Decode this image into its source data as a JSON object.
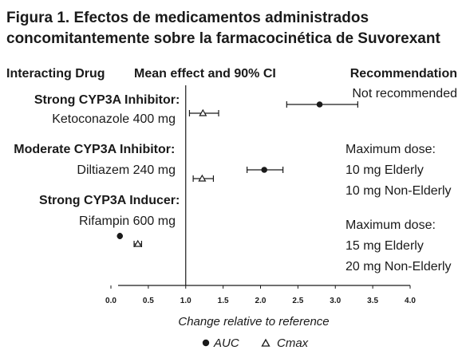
{
  "title_line1": "Figura 1. Efectos de medicamentos administrados",
  "title_line2": "concomitantemente sobre la farmacocinética de Suvorexant",
  "headers": {
    "interacting_drug": "Interacting Drug",
    "mean_effect": "Mean effect and 90% CI",
    "recommendation": "Recommendation"
  },
  "groups": [
    {
      "category": "Strong CYP3A Inhibitor",
      "drug": "Ketoconazole 400 mg",
      "recommendation": [
        "Not recommended"
      ]
    },
    {
      "category": "Moderate CYP3A Inhibitor",
      "drug": "Diltiazem 240 mg",
      "recommendation": [
        "Maximum dose:",
        "10 mg Elderly",
        "10 mg Non-Elderly"
      ]
    },
    {
      "category": "Strong CYP3A Inducer",
      "drug": "Rifampin 600 mg",
      "recommendation": [
        "Maximum dose:",
        "15 mg Elderly",
        "20 mg Non-Elderly"
      ]
    }
  ],
  "colors": {
    "ink": "#1a1a1a",
    "background": "#ffffff"
  },
  "chart_data": {
    "type": "forest",
    "xlabel": "Change relative to reference",
    "xlim": [
      0.0,
      4.0
    ],
    "xticks": [
      "0.0",
      "0.5",
      "1.0",
      "1.5",
      "2.0",
      "2.5",
      "3.0",
      "3.5",
      "4.0"
    ],
    "reference_line": 1.0,
    "legend": [
      {
        "name": "AUC",
        "marker": "filled-circle"
      },
      {
        "name": "Cmax",
        "marker": "open-triangle"
      }
    ],
    "series": [
      {
        "name": "AUC",
        "points": [
          {
            "drug": "Ketoconazole 400 mg",
            "mean": 2.79,
            "ci_low": 2.35,
            "ci_high": 3.3
          },
          {
            "drug": "Diltiazem 240 mg",
            "mean": 2.05,
            "ci_low": 1.82,
            "ci_high": 2.3
          },
          {
            "drug": "Rifampin 600 mg",
            "mean": 0.12,
            "ci_low": 0.11,
            "ci_high": 0.13
          }
        ]
      },
      {
        "name": "Cmax",
        "points": [
          {
            "drug": "Ketoconazole 400 mg",
            "mean": 1.23,
            "ci_low": 1.05,
            "ci_high": 1.44
          },
          {
            "drug": "Diltiazem 240 mg",
            "mean": 1.22,
            "ci_low": 1.1,
            "ci_high": 1.37
          },
          {
            "drug": "Rifampin 600 mg",
            "mean": 0.36,
            "ci_low": 0.31,
            "ci_high": 0.41
          }
        ]
      }
    ]
  }
}
